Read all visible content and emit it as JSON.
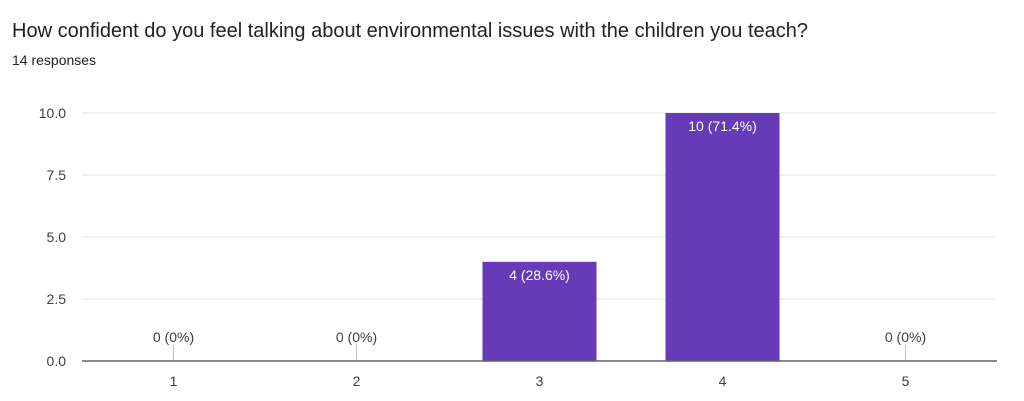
{
  "question": {
    "title": "How confident do you feel talking about environmental issues with the children you teach?",
    "responses_text": "14 responses"
  },
  "colors": {
    "bar": "#673ab7",
    "grid": "#e6e6e6",
    "axis": "#5f6368",
    "tick_mark": "#bdbdbd"
  },
  "chart_data": {
    "type": "bar",
    "title": "How confident do you feel talking about environmental issues with the children you teach?",
    "categories": [
      "1",
      "2",
      "3",
      "4",
      "5"
    ],
    "values": [
      0,
      0,
      4,
      10,
      0
    ],
    "data_labels": [
      "0 (0%)",
      "0 (0%)",
      "4 (28.6%)",
      "10 (71.4%)",
      "0 (0%)"
    ],
    "y_ticks": [
      "0.0",
      "2.5",
      "5.0",
      "7.5",
      "10.0"
    ],
    "y_tick_values": [
      0,
      2.5,
      5,
      7.5,
      10
    ],
    "ylim": [
      0,
      10
    ],
    "grid": true,
    "legend": "none"
  }
}
